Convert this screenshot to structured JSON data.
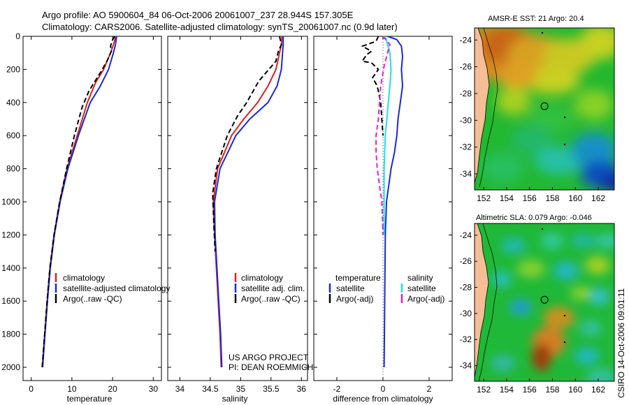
{
  "header": {
    "title_line1": "Argo profile: AO 5900604_84 06-Oct-2006 20061007_237 28.944S 157.305E",
    "title_line2": "Climatology: CARS2006. Satellite-adjusted climatology: synTS_20061007.nc (0.9d later)"
  },
  "footer": {
    "project_line1": "US ARGO PROJECT",
    "project_line2": "PI: DEAN ROEMMICH",
    "stamp": "CSIRO 14-Oct-2006 09:01:11"
  },
  "colors": {
    "climatology": "#e02020",
    "satellite": "#1a2ad0",
    "argo": "#000000",
    "salinity_sat": "#20e0e8",
    "salinity_argo": "#e020d8",
    "land": "#f5be96"
  },
  "chart_data": [
    {
      "type": "line",
      "id": "temperature",
      "xlabel": "temperature",
      "xlim": [
        -2,
        32
      ],
      "ylim": [
        2080,
        0
      ],
      "xticks": [
        "0",
        "10",
        "20",
        "30"
      ],
      "xtick_values": [
        0,
        10,
        20,
        30
      ],
      "yticks": [
        "0",
        "200",
        "400",
        "600",
        "800",
        "1000",
        "1200",
        "1400",
        "1600",
        "1800",
        "2000"
      ],
      "ytick_values": [
        0,
        200,
        400,
        600,
        800,
        1000,
        1200,
        1400,
        1600,
        1800,
        2000
      ],
      "legend": [
        "climatology",
        "satellite-adjusted climatology",
        "Argo(..raw -QC)"
      ],
      "series": [
        {
          "name": "climatology",
          "color": "#e02020",
          "dash": "",
          "points": [
            [
              20.8,
              0
            ],
            [
              20.2,
              50
            ],
            [
              19.5,
              100
            ],
            [
              17.8,
              200
            ],
            [
              15.8,
              280
            ],
            [
              13.8,
              400
            ],
            [
              11.3,
              600
            ],
            [
              8.8,
              800
            ],
            [
              7.0,
              1000
            ],
            [
              5.6,
              1200
            ],
            [
              4.6,
              1400
            ],
            [
              3.9,
              1600
            ],
            [
              3.3,
              1800
            ],
            [
              2.7,
              2000
            ]
          ]
        },
        {
          "name": "satellite-adjusted climatology",
          "color": "#1a2ad0",
          "dash": "",
          "points": [
            [
              21.0,
              0
            ],
            [
              20.7,
              50
            ],
            [
              20.2,
              100
            ],
            [
              19.0,
              200
            ],
            [
              17.0,
              300
            ],
            [
              14.5,
              400
            ],
            [
              11.6,
              600
            ],
            [
              9.0,
              800
            ],
            [
              7.1,
              1000
            ],
            [
              5.7,
              1200
            ],
            [
              4.7,
              1400
            ],
            [
              4.0,
              1600
            ],
            [
              3.4,
              1800
            ],
            [
              2.8,
              2000
            ]
          ]
        },
        {
          "name": "Argo(..raw -QC)",
          "color": "#000000",
          "dash": "7,4",
          "points": [
            [
              20.5,
              0
            ],
            [
              19.8,
              30
            ],
            [
              19.5,
              60
            ],
            [
              19.7,
              90
            ],
            [
              18.6,
              150
            ],
            [
              17.0,
              220
            ],
            [
              14.2,
              330
            ],
            [
              12.5,
              430
            ],
            [
              10.6,
              600
            ],
            [
              8.7,
              800
            ],
            [
              7.0,
              1000
            ],
            [
              5.6,
              1200
            ],
            [
              4.6,
              1400
            ],
            [
              3.9,
              1600
            ],
            [
              3.3,
              1800
            ],
            [
              2.7,
              2000
            ]
          ]
        }
      ]
    },
    {
      "type": "line",
      "id": "salinity",
      "xlabel": "salinity",
      "xlim": [
        33.8,
        36.1
      ],
      "ylim": [
        2080,
        0
      ],
      "xticks": [
        "34",
        "34.5",
        "35",
        "35.5",
        "36"
      ],
      "xtick_values": [
        34,
        34.5,
        35,
        35.5,
        36
      ],
      "legend": [
        "climatology",
        "satellite adj. clim.",
        "Argo(..raw -QC)"
      ],
      "series": [
        {
          "name": "climatology",
          "color": "#e02020",
          "dash": "",
          "points": [
            [
              35.68,
              0
            ],
            [
              35.67,
              50
            ],
            [
              35.64,
              100
            ],
            [
              35.58,
              200
            ],
            [
              35.45,
              300
            ],
            [
              35.28,
              400
            ],
            [
              35.05,
              500
            ],
            [
              34.85,
              600
            ],
            [
              34.62,
              800
            ],
            [
              34.55,
              1000
            ],
            [
              34.57,
              1200
            ],
            [
              34.6,
              1400
            ],
            [
              34.63,
              1600
            ],
            [
              34.66,
              1800
            ],
            [
              34.68,
              2000
            ]
          ]
        },
        {
          "name": "satellite adj. clim.",
          "color": "#1a2ad0",
          "dash": "",
          "points": [
            [
              35.7,
              0
            ],
            [
              35.7,
              50
            ],
            [
              35.69,
              100
            ],
            [
              35.67,
              200
            ],
            [
              35.6,
              300
            ],
            [
              35.45,
              400
            ],
            [
              35.15,
              500
            ],
            [
              34.92,
              600
            ],
            [
              34.66,
              800
            ],
            [
              34.57,
              1000
            ],
            [
              34.58,
              1200
            ],
            [
              34.61,
              1400
            ],
            [
              34.64,
              1600
            ],
            [
              34.67,
              1800
            ],
            [
              34.69,
              2000
            ]
          ]
        },
        {
          "name": "Argo(..raw -QC)",
          "color": "#000000",
          "dash": "7,4",
          "points": [
            [
              35.64,
              0
            ],
            [
              35.67,
              50
            ],
            [
              35.62,
              90
            ],
            [
              35.58,
              150
            ],
            [
              35.3,
              270
            ],
            [
              35.1,
              400
            ],
            [
              34.95,
              480
            ],
            [
              34.78,
              600
            ],
            [
              34.6,
              800
            ],
            [
              34.54,
              950
            ],
            [
              34.56,
              1150
            ],
            [
              34.58,
              1300
            ]
          ]
        }
      ]
    },
    {
      "type": "line",
      "id": "difference",
      "xlabel": "difference from climatology",
      "xlim": [
        -3,
        3
      ],
      "ylim": [
        2080,
        0
      ],
      "xticks": [
        "-2",
        "0",
        "2"
      ],
      "xtick_values": [
        -2,
        0,
        2
      ],
      "legend_titles": [
        "temperature",
        "salinity"
      ],
      "legend": [
        "satellite",
        "Argo(-adj)",
        "satellite",
        "Argo(-adj)"
      ],
      "series": [
        {
          "name": "temperature satellite",
          "color": "#1a2ad0",
          "dash": "",
          "points": [
            [
              0.2,
              0
            ],
            [
              0.6,
              20
            ],
            [
              0.8,
              60
            ],
            [
              0.85,
              120
            ],
            [
              0.8,
              200
            ],
            [
              0.85,
              300
            ],
            [
              0.75,
              400
            ],
            [
              0.65,
              500
            ],
            [
              0.6,
              600
            ],
            [
              0.5,
              700
            ],
            [
              0.35,
              800
            ],
            [
              0.25,
              900
            ],
            [
              0.15,
              1000
            ],
            [
              0.1,
              1200
            ],
            [
              0.05,
              2000
            ]
          ]
        },
        {
          "name": "temperature Argo(-adj)",
          "color": "#000000",
          "dash": "7,4",
          "points": [
            [
              -0.2,
              0
            ],
            [
              -0.3,
              30
            ],
            [
              -0.9,
              60
            ],
            [
              -0.5,
              90
            ],
            [
              -0.7,
              110
            ],
            [
              -0.9,
              150
            ],
            [
              -0.5,
              160
            ],
            [
              -0.2,
              200
            ],
            [
              -0.45,
              250
            ],
            [
              -0.25,
              300
            ],
            [
              -0.1,
              400
            ],
            [
              0.0,
              600
            ]
          ]
        },
        {
          "name": "salinity satellite",
          "color": "#20e0e8",
          "dash": "",
          "points": [
            [
              0.1,
              0
            ],
            [
              0.2,
              50
            ],
            [
              0.3,
              100
            ],
            [
              0.35,
              200
            ],
            [
              0.3,
              300
            ],
            [
              0.2,
              450
            ],
            [
              0.1,
              600
            ],
            [
              0.05,
              800
            ],
            [
              0.05,
              1200
            ]
          ]
        },
        {
          "name": "salinity Argo(-adj)",
          "color": "#e020d8",
          "dash": "7,4",
          "points": [
            [
              0.0,
              0
            ],
            [
              0.3,
              50
            ],
            [
              0.2,
              100
            ],
            [
              0.05,
              180
            ],
            [
              -0.1,
              300
            ],
            [
              -0.15,
              400
            ],
            [
              -0.2,
              500
            ],
            [
              -0.3,
              600
            ],
            [
              -0.3,
              700
            ],
            [
              -0.25,
              800
            ],
            [
              -0.15,
              900
            ],
            [
              -0.05,
              1000
            ],
            [
              0.0,
              1200
            ]
          ]
        }
      ]
    },
    {
      "type": "heatmap",
      "id": "sst_map",
      "title": "AMSR-E SST: 21  Argo: 20.4",
      "xlim": [
        151.2,
        163.4
      ],
      "ylim": [
        -35.2,
        -23.1
      ],
      "xticks": [
        "152",
        "154",
        "156",
        "158",
        "160",
        "162"
      ],
      "xtick_values": [
        152,
        154,
        156,
        158,
        160,
        162
      ],
      "yticks": [
        "-24",
        "-26",
        "-28",
        "-30",
        "-32",
        "-34"
      ],
      "ytick_values": [
        -24,
        -26,
        -28,
        -30,
        -32,
        -34
      ],
      "marker": [
        157.305,
        -28.944
      ]
    },
    {
      "type": "heatmap",
      "id": "sla_map",
      "title": "Altimetric SLA: 0.079  Argo: -0.046",
      "xlim": [
        151.2,
        163.4
      ],
      "ylim": [
        -35.2,
        -23.1
      ],
      "xticks": [
        "152",
        "154",
        "156",
        "158",
        "160",
        "162"
      ],
      "xtick_values": [
        152,
        154,
        156,
        158,
        160,
        162
      ],
      "yticks": [
        "-24",
        "-26",
        "-28",
        "-30",
        "-32",
        "-34"
      ],
      "ytick_values": [
        -24,
        -26,
        -28,
        -30,
        -32,
        -34
      ],
      "marker": [
        157.305,
        -28.944
      ]
    }
  ]
}
